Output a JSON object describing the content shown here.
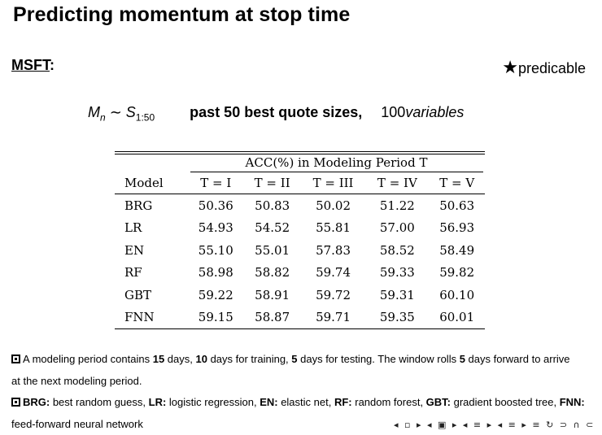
{
  "slide": {
    "title": "Predicting momentum at stop time",
    "ticker": "MSFT",
    "ticker_colon": ":",
    "predicable_star": "★",
    "predicable_label": "predicable"
  },
  "formula": {
    "lhs": "M",
    "lhs_sub": "n",
    "relation": " ∼ ",
    "rhs": "S",
    "rhs_sub": "1:50",
    "description": "past 50 best quote sizes,",
    "vars_count": "100",
    "vars_word": "variables"
  },
  "table": {
    "group_header": "ACC(%) in Modeling Period T",
    "columns": [
      "Model",
      "T = I",
      "T = II",
      "T = III",
      "T = IV",
      "T = V"
    ],
    "rows": [
      {
        "model": "BRG",
        "values": [
          "50.36",
          "50.83",
          "50.02",
          "51.22",
          "50.63"
        ]
      },
      {
        "model": "LR",
        "values": [
          "54.93",
          "54.52",
          "55.81",
          "57.00",
          "56.93"
        ]
      },
      {
        "model": "EN",
        "values": [
          "55.10",
          "55.01",
          "57.83",
          "58.52",
          "58.49"
        ]
      },
      {
        "model": "RF",
        "values": [
          "58.98",
          "58.82",
          "59.74",
          "59.33",
          "59.82"
        ]
      },
      {
        "model": "GBT",
        "values": [
          "59.22",
          "58.91",
          "59.72",
          "59.31",
          "60.10"
        ]
      },
      {
        "model": "FNN",
        "values": [
          "59.15",
          "58.87",
          "59.71",
          "59.35",
          "60.01"
        ]
      }
    ]
  },
  "notes": {
    "note1_a": "A modeling period contains ",
    "note1_b": "15",
    "note1_c": " days, ",
    "note1_d": "10",
    "note1_e": " days for training, ",
    "note1_f": "5",
    "note1_g": " days for testing. The window rolls ",
    "note1_h": "5",
    "note1_i": " days forward to arrive at the next modeling period.",
    "note2": [
      {
        "abbr": "BRG:",
        "text": " best random guess, "
      },
      {
        "abbr": "LR:",
        "text": " logistic regression, "
      },
      {
        "abbr": "EN:",
        "text": " elastic net, "
      },
      {
        "abbr": "RF:",
        "text": " random forest, "
      },
      {
        "abbr": "GBT:",
        "text": " gradient boosted tree, "
      },
      {
        "abbr": "FNN:",
        "text": " feed-forward neural network"
      }
    ]
  },
  "nav": {
    "symbols": "◂ ▫ ▸ ◂ ▣ ▸ ◂ ≡ ▸ ◂ ≡ ▸   ≡   ↻ ⊃ ∩ ⊂"
  }
}
